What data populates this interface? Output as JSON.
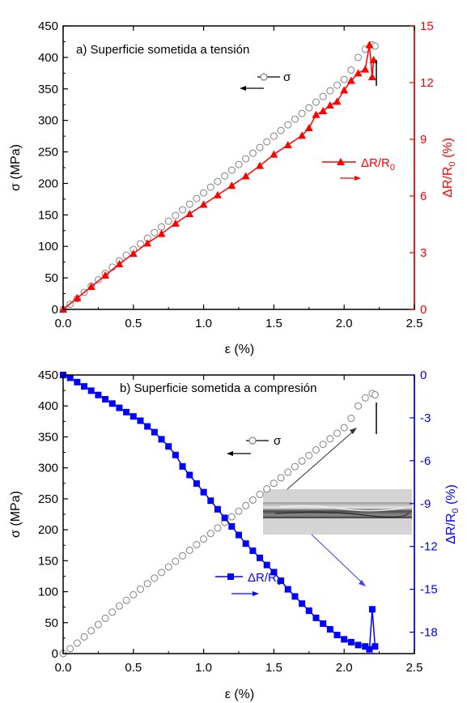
{
  "chart_data": [
    {
      "type": "scatter",
      "title": "a) Superficie sometida a tensión",
      "xlabel": "ε (%)",
      "ylabel": "σ (MPa)",
      "y2label": "ΔR/R0 (%)",
      "y2label_main": "ΔR/R",
      "y2label_sub": "0",
      "y2label_unit": "(%)",
      "xlim": [
        0,
        2.5
      ],
      "ylim": [
        0,
        450
      ],
      "y2lim": [
        0,
        15
      ],
      "xticks": [
        "0.0",
        "0.5",
        "1.0",
        "1.5",
        "2.0",
        "2.5"
      ],
      "yticks": [
        "0",
        "50",
        "100",
        "150",
        "200",
        "250",
        "300",
        "350",
        "400",
        "450"
      ],
      "y2ticks": [
        "0",
        "3",
        "6",
        "9",
        "12",
        "15"
      ],
      "legend": [
        {
          "label": "σ",
          "axis": "left",
          "marker": "open-circle",
          "color": "#808080"
        },
        {
          "label": "ΔR/R0",
          "main": "ΔR/R",
          "sub": "0",
          "axis": "right",
          "marker": "filled-triangle",
          "color": "#ff0000"
        }
      ],
      "series": [
        {
          "name": "σ",
          "axis": "left",
          "color": "#808080",
          "x": [
            0.0,
            0.05,
            0.1,
            0.15,
            0.2,
            0.25,
            0.3,
            0.35,
            0.4,
            0.45,
            0.5,
            0.55,
            0.6,
            0.65,
            0.7,
            0.75,
            0.8,
            0.85,
            0.9,
            0.95,
            1.0,
            1.05,
            1.1,
            1.15,
            1.2,
            1.25,
            1.3,
            1.35,
            1.4,
            1.45,
            1.5,
            1.55,
            1.6,
            1.65,
            1.7,
            1.75,
            1.8,
            1.85,
            1.9,
            1.95,
            2.0,
            2.05,
            2.1,
            2.15,
            2.2,
            2.22
          ],
          "y": [
            0,
            8,
            17,
            27,
            37,
            47,
            57,
            67,
            77,
            86,
            95,
            104,
            113,
            122,
            131,
            140,
            149,
            158,
            167,
            176,
            185,
            194,
            203,
            212,
            221,
            230,
            239,
            248,
            257,
            266,
            275,
            284,
            293,
            302,
            311,
            320,
            329,
            338,
            347,
            356,
            365,
            380,
            400,
            413,
            420,
            418
          ]
        },
        {
          "name": "ΔR/R0",
          "axis": "right",
          "color": "#ff0000",
          "x": [
            0.0,
            0.1,
            0.2,
            0.3,
            0.4,
            0.5,
            0.6,
            0.7,
            0.8,
            0.9,
            1.0,
            1.1,
            1.2,
            1.3,
            1.4,
            1.5,
            1.6,
            1.7,
            1.75,
            1.8,
            1.85,
            1.9,
            1.95,
            2.0,
            2.05,
            2.1,
            2.15,
            2.18,
            2.2,
            2.21
          ],
          "y": [
            0,
            0.6,
            1.2,
            1.8,
            2.4,
            2.95,
            3.5,
            4.0,
            4.55,
            5.05,
            5.55,
            6.05,
            6.55,
            7.05,
            7.6,
            8.2,
            8.7,
            9.2,
            9.6,
            10.3,
            10.5,
            10.8,
            11.0,
            11.6,
            12.1,
            12.5,
            12.7,
            14.0,
            12.3,
            13.2
          ]
        }
      ]
    },
    {
      "type": "scatter",
      "title": "b) Superficie sometida a compresión",
      "xlabel": "ε (%)",
      "ylabel": "σ (MPa)",
      "y2label": "ΔR/R0 (%)",
      "y2label_main": "ΔR/R",
      "y2label_sub": "0",
      "y2label_unit": "(%)",
      "xlim": [
        0,
        2.5
      ],
      "ylim": [
        0,
        450
      ],
      "y2lim": [
        -19.5,
        0
      ],
      "xticks": [
        "0.0",
        "0.5",
        "1.0",
        "1.5",
        "2.0",
        "2.5"
      ],
      "yticks": [
        "0",
        "50",
        "100",
        "150",
        "200",
        "250",
        "300",
        "350",
        "400",
        "450"
      ],
      "y2ticks": [
        "0",
        "-3",
        "-6",
        "-9",
        "-12",
        "-15",
        "-18"
      ],
      "legend": [
        {
          "label": "σ",
          "axis": "left",
          "marker": "open-circle",
          "color": "#808080"
        },
        {
          "label": "ΔR/R0",
          "main": "ΔR/R",
          "sub": "0",
          "axis": "right",
          "marker": "filled-square",
          "color": "#0000ff"
        }
      ],
      "series": [
        {
          "name": "σ",
          "axis": "left",
          "color": "#808080",
          "x": [
            0.0,
            0.05,
            0.1,
            0.15,
            0.2,
            0.25,
            0.3,
            0.35,
            0.4,
            0.45,
            0.5,
            0.55,
            0.6,
            0.65,
            0.7,
            0.75,
            0.8,
            0.85,
            0.9,
            0.95,
            1.0,
            1.05,
            1.1,
            1.15,
            1.2,
            1.25,
            1.3,
            1.35,
            1.4,
            1.45,
            1.5,
            1.55,
            1.6,
            1.65,
            1.7,
            1.75,
            1.8,
            1.85,
            1.9,
            1.95,
            2.0,
            2.05,
            2.1,
            2.15,
            2.2,
            2.22
          ],
          "y": [
            0,
            8,
            17,
            27,
            37,
            47,
            57,
            67,
            77,
            86,
            95,
            104,
            113,
            122,
            131,
            140,
            149,
            158,
            167,
            176,
            185,
            194,
            203,
            212,
            221,
            230,
            239,
            248,
            257,
            266,
            275,
            284,
            293,
            302,
            311,
            320,
            329,
            338,
            347,
            356,
            365,
            380,
            400,
            413,
            420,
            418
          ]
        },
        {
          "name": "ΔR/R0",
          "axis": "right",
          "color": "#0000ff",
          "x": [
            0.0,
            0.05,
            0.1,
            0.15,
            0.2,
            0.25,
            0.3,
            0.35,
            0.4,
            0.45,
            0.5,
            0.55,
            0.6,
            0.65,
            0.7,
            0.75,
            0.8,
            0.85,
            0.9,
            0.95,
            1.0,
            1.05,
            1.1,
            1.15,
            1.2,
            1.25,
            1.3,
            1.35,
            1.4,
            1.45,
            1.5,
            1.55,
            1.6,
            1.65,
            1.7,
            1.75,
            1.8,
            1.85,
            1.9,
            1.95,
            2.0,
            2.05,
            2.1,
            2.15,
            2.18,
            2.2,
            2.22
          ],
          "y": [
            0,
            -0.2,
            -0.5,
            -0.8,
            -1.1,
            -1.4,
            -1.7,
            -2.0,
            -2.3,
            -2.6,
            -2.9,
            -3.2,
            -3.6,
            -4.0,
            -4.5,
            -5.0,
            -5.6,
            -6.4,
            -7.0,
            -7.6,
            -8.2,
            -8.8,
            -9.4,
            -10.0,
            -10.6,
            -11.2,
            -11.8,
            -12.3,
            -12.8,
            -13.3,
            -13.8,
            -14.4,
            -15.0,
            -15.5,
            -16.0,
            -16.5,
            -17.0,
            -17.4,
            -17.8,
            -18.2,
            -18.5,
            -18.7,
            -18.9,
            -19.0,
            -19.2,
            -16.4,
            -19.0
          ]
        }
      ]
    }
  ]
}
